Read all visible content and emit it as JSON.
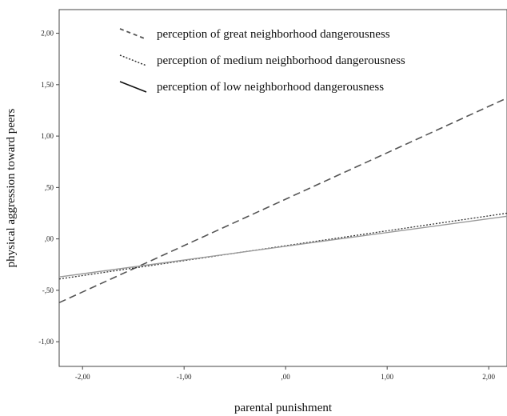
{
  "chart_data": {
    "type": "line",
    "xlabel": "parental punishment",
    "ylabel": "physical aggression toward peers",
    "xlim": [
      -2.23,
      2.18
    ],
    "ylim": [
      -1.24,
      2.23
    ],
    "xticks": [
      -2,
      -1,
      0,
      1,
      2
    ],
    "xtick_labels": [
      "-2,00",
      "-1,00",
      ",00",
      "1,00",
      "2,00"
    ],
    "yticks": [
      2,
      1.5,
      1,
      0.5,
      0,
      -0.5,
      -1
    ],
    "ytick_labels": [
      "2,00",
      "1,50",
      "1,00",
      ",50",
      ",00",
      "-,50",
      "-1,00"
    ],
    "legend_position": "top-left",
    "grid": false,
    "series": [
      {
        "name": "perception of great neighborhood dangerousness",
        "style": "dashed",
        "color": "#555555",
        "x": [
          -2.23,
          2.18
        ],
        "y": [
          -0.62,
          1.37
        ]
      },
      {
        "name": "perception of medium neighborhood dangerousness",
        "style": "dotted",
        "color": "#333333",
        "x": [
          -2.23,
          2.18
        ],
        "y": [
          -0.39,
          0.25
        ]
      },
      {
        "name": "perception of low neighborhood dangerousness",
        "style": "solid",
        "color": "#9a9a9a",
        "x": [
          -2.23,
          2.18
        ],
        "y": [
          -0.37,
          0.22
        ]
      }
    ]
  }
}
